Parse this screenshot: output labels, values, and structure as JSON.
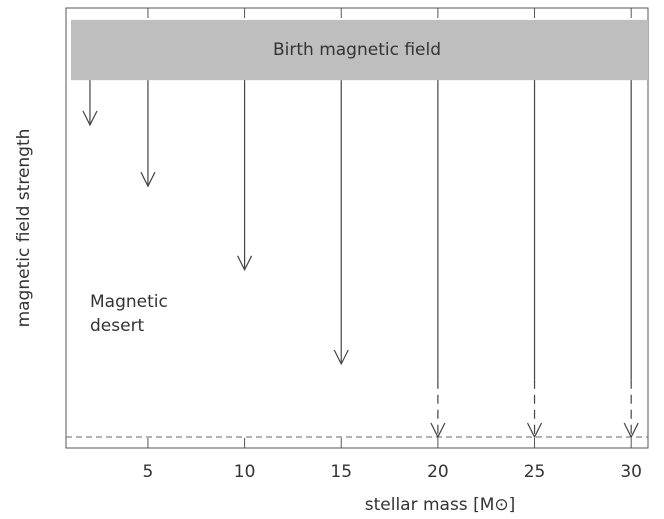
{
  "chart_data": {
    "type": "arrows",
    "band": {
      "label": "Birth magnetic field",
      "range": [
        83.6,
        97.3
      ],
      "color": "#bebebe"
    },
    "x": [
      2,
      5,
      10,
      15,
      20,
      25,
      30
    ],
    "values": [
      73.4,
      59.5,
      40.5,
      19.1,
      2.5,
      2.5,
      2.5
    ],
    "dashed_from": [
      null,
      null,
      null,
      null,
      15.5,
      15.5,
      15.5
    ],
    "floor": 2.5,
    "annotation": [
      "Magnetic",
      "desert"
    ],
    "xlabel": "stellar mass [M⊙]",
    "ylabel": "magnetic field strength",
    "xlim": [
      0.76,
      30.87
    ],
    "ylim": [
      0,
      100
    ],
    "xticks": [
      5,
      10,
      15,
      20,
      25,
      30
    ]
  }
}
